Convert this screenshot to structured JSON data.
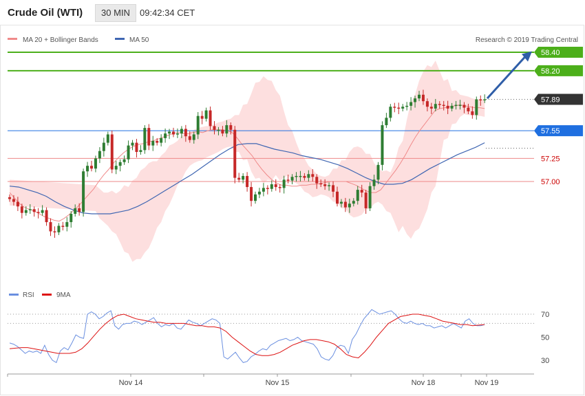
{
  "header": {
    "title": "Crude Oil (WTI)",
    "timeframe": "30 MIN",
    "time": "09:42:34 CET"
  },
  "legend": {
    "ma20": "MA 20 + Bollinger Bands",
    "ma50": "MA 50",
    "credit": "Research © 2019 Trading Central"
  },
  "rsi_legend": {
    "rsi": "RSI",
    "ma": "9MA"
  },
  "colors": {
    "up": "#2e7d32",
    "down": "#c62828",
    "ma50": "#3f66b2",
    "band": "#fdd7d7",
    "target": "#4caf1a",
    "pivot": "#1f6fe0",
    "arrow": "#2f5ea8",
    "last": "#333333"
  },
  "chart_data": [
    {
      "type": "candlestick",
      "ylim": [
        56.05,
        58.6
      ],
      "xticks": [
        "Nov 14",
        "Nov 15",
        "Nov 18",
        "Nov 19"
      ],
      "levels": [
        {
          "value": 58.4,
          "label": "58.40",
          "style": "target"
        },
        {
          "value": 58.2,
          "label": "58.20",
          "style": "target"
        },
        {
          "value": 57.89,
          "label": "57.89",
          "style": "last"
        },
        {
          "value": 57.55,
          "label": "57.55",
          "style": "pivot"
        },
        {
          "value": 57.25,
          "label": "57.25",
          "style": "line"
        },
        {
          "value": 57.0,
          "label": "57.00",
          "style": "line"
        }
      ],
      "close": [
        56.81,
        56.78,
        56.73,
        56.66,
        56.69,
        56.7,
        56.67,
        56.66,
        56.69,
        56.56,
        56.46,
        56.45,
        56.52,
        56.51,
        56.56,
        56.65,
        56.71,
        56.67,
        57.11,
        57.17,
        57.14,
        57.25,
        57.33,
        57.42,
        57.51,
        57.13,
        57.17,
        57.21,
        57.24,
        57.39,
        57.42,
        57.32,
        57.34,
        57.58,
        57.39,
        57.44,
        57.42,
        57.47,
        57.52,
        57.54,
        57.51,
        57.52,
        57.57,
        57.49,
        57.45,
        57.51,
        57.71,
        57.68,
        57.77,
        57.6,
        57.56,
        57.56,
        57.52,
        57.61,
        57.56,
        57.04,
        57.02,
        57.06,
        56.94,
        56.79,
        56.86,
        56.89,
        56.93,
        56.92,
        56.97,
        56.94,
        56.93,
        57.02,
        57.01,
        57.05,
        57.06,
        57.06,
        57.04,
        57.08,
        57.05,
        56.98,
        56.97,
        56.95,
        56.96,
        56.89,
        56.76,
        56.78,
        56.72,
        56.76,
        56.79,
        56.91,
        56.88,
        56.71,
        56.95,
        57.02,
        57.18,
        57.61,
        57.69,
        57.81,
        57.8,
        57.79,
        57.81,
        57.82,
        57.86,
        57.9,
        57.94,
        57.87,
        57.81,
        57.79,
        57.84,
        57.83,
        57.82,
        57.79,
        57.82,
        57.83,
        57.83,
        57.8,
        57.76,
        57.72,
        57.89,
        57.88,
        57.89
      ],
      "ma20": [
        56.88,
        56.82,
        56.76,
        56.72,
        56.7,
        56.68,
        56.65,
        56.62,
        56.6,
        56.58,
        56.57,
        56.6,
        56.64,
        56.69,
        56.74,
        56.8,
        56.86,
        56.92,
        57.0,
        57.07,
        57.13,
        57.2,
        57.26,
        57.31,
        57.35,
        57.38,
        57.4,
        57.41,
        57.43,
        57.44,
        57.46,
        57.48,
        57.5,
        57.52,
        57.53,
        57.52,
        57.52,
        57.53,
        57.54,
        57.53,
        57.55,
        57.56,
        57.56,
        57.56,
        57.55,
        57.53,
        57.47,
        57.4,
        57.34,
        57.28,
        57.2,
        57.13,
        57.07,
        57.02,
        56.98,
        56.96,
        56.96,
        56.95,
        56.95,
        56.96,
        56.96,
        56.97,
        56.97,
        56.98,
        56.99,
        57.0,
        57.0,
        57.0,
        57.0,
        56.98,
        56.96,
        56.93,
        56.9,
        56.88,
        56.88,
        56.91,
        56.98,
        57.05,
        57.12,
        57.2,
        57.29,
        57.39,
        57.48,
        57.56,
        57.63,
        57.7,
        57.77,
        57.79,
        57.8,
        57.81,
        57.82,
        57.83,
        57.82,
        57.81,
        57.8,
        57.8,
        57.79
      ],
      "ma50": [
        56.95,
        56.94,
        56.91,
        56.88,
        56.84,
        56.78,
        56.73,
        56.69,
        56.66,
        56.65,
        56.65,
        56.65,
        56.67,
        56.69,
        56.73,
        56.78,
        56.84,
        56.9,
        56.96,
        57.02,
        57.08,
        57.15,
        57.22,
        57.29,
        57.35,
        57.4,
        57.41,
        57.41,
        57.38,
        57.35,
        57.33,
        57.31,
        57.28,
        57.26,
        57.24,
        57.21,
        57.18,
        57.14,
        57.09,
        57.04,
        57.0,
        56.97,
        56.97,
        56.98,
        57.02,
        57.08,
        57.14,
        57.19,
        57.24,
        57.29,
        57.33,
        57.37,
        57.42
      ],
      "bb_width": [
        0.14,
        0.16,
        0.18,
        0.22,
        0.28,
        0.36,
        0.44,
        0.48,
        0.46,
        0.42,
        0.36,
        0.32,
        0.28,
        0.24,
        0.2,
        0.18,
        0.18,
        0.17,
        0.16,
        0.16,
        0.15,
        0.15,
        0.2,
        0.3,
        0.42,
        0.52,
        0.58,
        0.54,
        0.46,
        0.36,
        0.27,
        0.22,
        0.18,
        0.15,
        0.12,
        0.1,
        0.12,
        0.18,
        0.26,
        0.34,
        0.38,
        0.36,
        0.3,
        0.22,
        0.18,
        0.22,
        0.32,
        0.46,
        0.62,
        0.74,
        0.8,
        0.78,
        0.68,
        0.5,
        0.32,
        0.18,
        0.12,
        0.1,
        0.09,
        0.09,
        0.09
      ]
    },
    {
      "type": "line",
      "ylim": [
        20,
        80
      ],
      "ticks": [
        70,
        50,
        30
      ],
      "guides": [
        70,
        62
      ],
      "series": [
        {
          "name": "RSI",
          "values": [
            45,
            44,
            42,
            39,
            36,
            38,
            37,
            38,
            36,
            43,
            35,
            30,
            28,
            38,
            41,
            39,
            45,
            52,
            50,
            49,
            70,
            72,
            70,
            66,
            68,
            71,
            73,
            60,
            57,
            61,
            62,
            62,
            64,
            63,
            61,
            63,
            65,
            67,
            62,
            59,
            61,
            60,
            62,
            58,
            57,
            61,
            65,
            63,
            62,
            60,
            62,
            64,
            66,
            65,
            62,
            33,
            31,
            34,
            37,
            32,
            28,
            29,
            33,
            35,
            38,
            40,
            39,
            43,
            45,
            47,
            48,
            49,
            47,
            48,
            50,
            47,
            46,
            45,
            44,
            40,
            33,
            31,
            30,
            34,
            41,
            43,
            42,
            36,
            48,
            53,
            60,
            66,
            70,
            74,
            72,
            70,
            71,
            72,
            73,
            70,
            66,
            63,
            62,
            64,
            62,
            61,
            62,
            60,
            60,
            58,
            59,
            60,
            58,
            60,
            62,
            60,
            58,
            64,
            66,
            62,
            60,
            60,
            61
          ]
        },
        {
          "name": "9MA",
          "values": [
            40,
            40.5,
            41,
            41,
            40,
            39,
            38,
            37,
            36,
            36,
            36,
            37,
            40,
            45,
            51,
            57,
            62,
            66,
            69,
            70,
            68,
            66,
            65,
            64,
            63,
            63,
            62,
            62,
            62,
            62,
            61,
            60,
            60,
            59,
            59,
            58,
            55,
            50,
            46,
            42,
            38,
            35,
            34,
            34,
            35,
            37,
            40,
            43,
            45,
            47,
            48,
            48,
            47,
            46,
            44,
            40,
            35,
            33,
            32,
            37,
            43,
            50,
            56,
            62,
            65,
            68,
            69,
            70,
            70,
            69,
            68,
            66,
            64,
            63,
            62,
            61,
            61,
            60,
            60.5,
            61
          ]
        }
      ]
    }
  ]
}
